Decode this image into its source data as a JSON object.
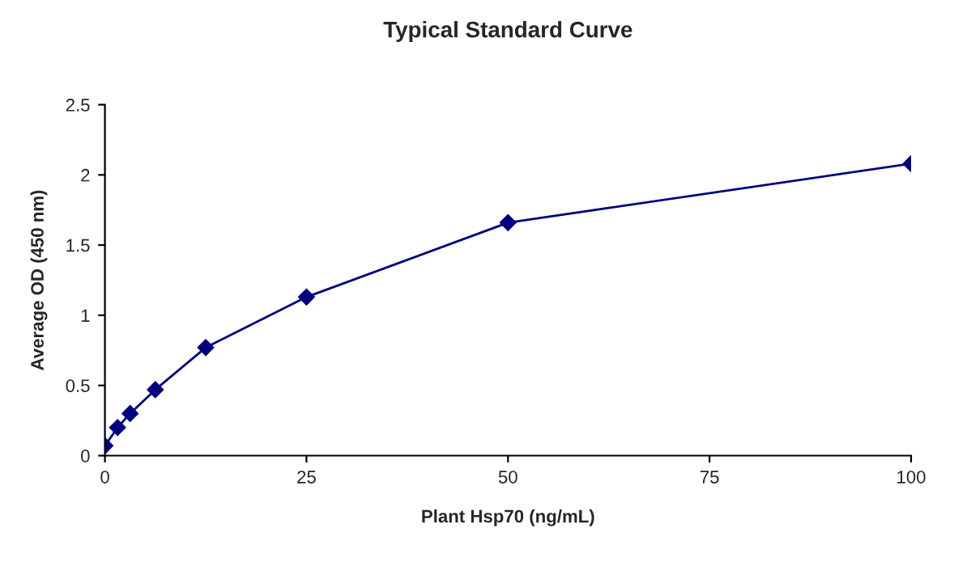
{
  "chart_data": {
    "type": "line",
    "title": "Typical Standard Curve",
    "xlabel": "Plant Hsp70 (ng/mL)",
    "ylabel": "Average OD (450 nm)",
    "x": [
      0,
      1.5625,
      3.125,
      6.25,
      12.5,
      25,
      50,
      100
    ],
    "series": [
      {
        "color": "#000080",
        "values": [
          0.07,
          0.2,
          0.3,
          0.47,
          0.77,
          1.13,
          1.66,
          2.08
        ]
      }
    ],
    "xlim": [
      0,
      100
    ],
    "xticks": [
      0,
      25,
      50,
      75,
      100
    ],
    "ylim": [
      0,
      2.5
    ],
    "yticks": [
      0,
      0.5,
      1,
      1.5,
      2,
      2.5
    ],
    "marker": "diamond",
    "line_style": "solid",
    "grid": false,
    "legend": false
  }
}
